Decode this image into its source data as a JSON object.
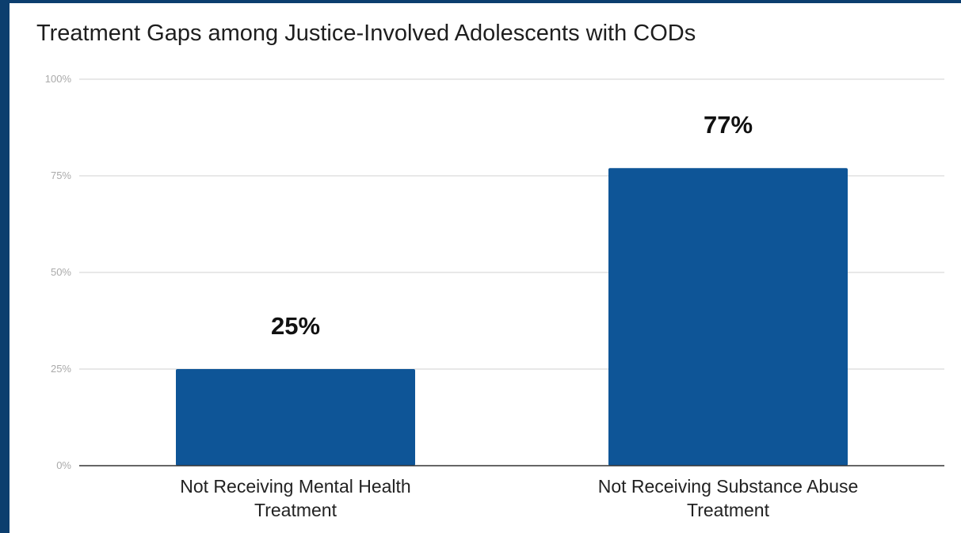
{
  "chart_data": {
    "type": "bar",
    "title": "Treatment Gaps among Justice-Involved Adolescents with CODs",
    "categories": [
      [
        "Not Receiving Mental Health",
        "Treatment"
      ],
      [
        "Not Receiving Substance Abuse",
        "Treatment"
      ]
    ],
    "values": [
      25,
      77
    ],
    "data_labels": [
      "25%",
      "77%"
    ],
    "yticks": [
      0,
      25,
      50,
      75,
      100
    ],
    "ytick_labels": [
      "0%",
      "25%",
      "50%",
      "75%",
      "100%"
    ],
    "ylim": [
      0,
      100
    ],
    "xlabel": "",
    "ylabel": "",
    "grid": true,
    "legend": "none",
    "colors": {
      "bar": "#0e5597",
      "frame": "#0c3e6e",
      "grid": "#d9d9d9",
      "axis": "#333333"
    }
  }
}
